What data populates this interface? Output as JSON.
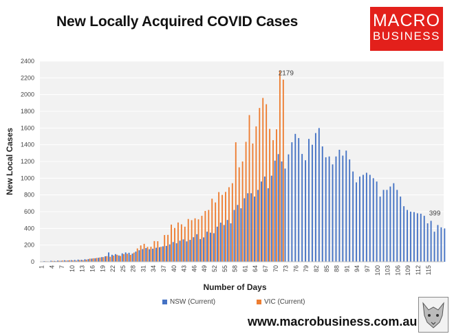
{
  "title": "New Locally Acquired COVID Cases",
  "logo": {
    "line1": "MACRO",
    "line2": "BUSINESS"
  },
  "website": "www.macrobusiness.com.au",
  "chart_data": {
    "type": "bar",
    "title": "New Locally Acquired COVID Cases",
    "xlabel": "Number of Days",
    "ylabel": "New Local Cases",
    "ylim": [
      0,
      2400
    ],
    "yticks": [
      0,
      200,
      400,
      600,
      800,
      1000,
      1200,
      1400,
      1600,
      1800,
      2000,
      2200,
      2400
    ],
    "xticks": [
      "1",
      "4",
      "7",
      "10",
      "13",
      "16",
      "19",
      "22",
      "25",
      "28",
      "31",
      "34",
      "37",
      "40",
      "43",
      "46",
      "49",
      "52",
      "55",
      "58",
      "61",
      "64",
      "67",
      "70",
      "73",
      "76",
      "79",
      "82",
      "85",
      "88",
      "91",
      "94",
      "97",
      "100",
      "103",
      "106",
      "109",
      "112",
      "115"
    ],
    "grid": true,
    "legend_position": "bottom",
    "annotations": [
      {
        "text": "2179",
        "series": "VIC (Current)",
        "day": 72
      },
      {
        "text": "399",
        "series": "NSW (Current)",
        "day": 116
      }
    ],
    "colors": {
      "nsw": "#4472c4",
      "vic": "#ed7d31"
    },
    "series": [
      {
        "name": "NSW (Current)",
        "start_day": 1,
        "values": [
          4,
          8,
          5,
          12,
          10,
          14,
          12,
          18,
          16,
          20,
          22,
          26,
          24,
          30,
          32,
          38,
          42,
          48,
          56,
          66,
          112,
          84,
          92,
          76,
          101,
          112,
          108,
          98,
          122,
          138,
          152,
          164,
          150,
          156,
          168,
          174,
          185,
          190,
          208,
          236,
          222,
          252,
          268,
          244,
          262,
          294,
          330,
          272,
          292,
          360,
          348,
          342,
          420,
          468,
          440,
          500,
          460,
          620,
          680,
          640,
          760,
          820,
          820,
          780,
          860,
          960,
          1020,
          880,
          1030,
          1210,
          1288,
          1200,
          1115,
          1285,
          1430,
          1530,
          1480,
          1290,
          1215,
          1470,
          1400,
          1540,
          1600,
          1380,
          1250,
          1260,
          1165,
          1260,
          1340,
          1270,
          1330,
          1225,
          1080,
          950,
          1020,
          1040,
          1065,
          1040,
          1000,
          960,
          780,
          860,
          860,
          900,
          940,
          860,
          780,
          665,
          620,
          600,
          595,
          580,
          575,
          550,
          460,
          490,
          360,
          440,
          412,
          399
        ]
      },
      {
        "name": "VIC (Current)",
        "start_day": 1,
        "values": [
          3,
          6,
          2,
          10,
          8,
          12,
          15,
          14,
          18,
          16,
          14,
          20,
          18,
          26,
          38,
          42,
          46,
          52,
          56,
          68,
          60,
          74,
          84,
          70,
          92,
          96,
          82,
          110,
          160,
          196,
          215,
          178,
          180,
          248,
          246,
          180,
          320,
          322,
          445,
          405,
          470,
          448,
          420,
          512,
          498,
          520,
          508,
          550,
          608,
          620,
          755,
          710,
          834,
          800,
          836,
          892,
          940,
          1430,
          1130,
          1200,
          1435,
          1755,
          1415,
          1620,
          1840,
          1960,
          1885,
          1590,
          1455,
          1585,
          2290,
          2179
        ]
      }
    ]
  }
}
